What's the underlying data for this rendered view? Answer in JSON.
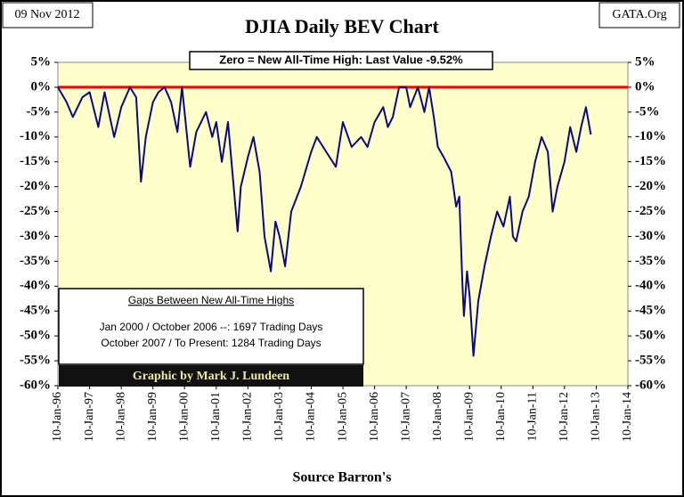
{
  "chart_data": {
    "type": "line",
    "title": "DJIA Daily BEV Chart",
    "date_label": "09 Nov 2012",
    "source_label": "GATA.Org",
    "xlabel": "Source Barron's",
    "annotations": {
      "top_box": "Zero = New All-Time High: Last Value  -9.52%",
      "gap_heading": "Gaps Between New All-Time Highs",
      "gap_lines": [
        "Jan 2000 / October 2006 --: 1697 Trading Days",
        "October 2007 / To Present:  1284 Trading Days"
      ],
      "credit": "Graphic by Mark J. Lundeen"
    },
    "background": "#ffffcc",
    "reference_line": {
      "value": 0,
      "color": "#ff0000"
    },
    "xlim": [
      "1996-01-10",
      "2014-01-10"
    ],
    "xticks": [
      {
        "value": "1996-01-10",
        "label": "10-Jan-96"
      },
      {
        "value": "1997-01-10",
        "label": "10-Jan-97"
      },
      {
        "value": "1998-01-10",
        "label": "10-Jan-98"
      },
      {
        "value": "1999-01-10",
        "label": "10-Jan-99"
      },
      {
        "value": "2000-01-10",
        "label": "10-Jan-00"
      },
      {
        "value": "2001-01-10",
        "label": "10-Jan-01"
      },
      {
        "value": "2002-01-10",
        "label": "10-Jan-02"
      },
      {
        "value": "2003-01-10",
        "label": "10-Jan-03"
      },
      {
        "value": "2004-01-10",
        "label": "10-Jan-04"
      },
      {
        "value": "2005-01-10",
        "label": "10-Jan-05"
      },
      {
        "value": "2006-01-10",
        "label": "10-Jan-06"
      },
      {
        "value": "2007-01-10",
        "label": "10-Jan-07"
      },
      {
        "value": "2008-01-10",
        "label": "10-Jan-08"
      },
      {
        "value": "2009-01-10",
        "label": "10-Jan-09"
      },
      {
        "value": "2010-01-10",
        "label": "10-Jan-10"
      },
      {
        "value": "2011-01-10",
        "label": "10-Jan-11"
      },
      {
        "value": "2012-01-10",
        "label": "10-Jan-12"
      },
      {
        "value": "2013-01-10",
        "label": "10-Jan-13"
      },
      {
        "value": "2014-01-10",
        "label": "10-Jan-14"
      }
    ],
    "ylim": [
      -60,
      5
    ],
    "yticks": [
      {
        "value": 5,
        "label": "5%"
      },
      {
        "value": 0,
        "label": "0%"
      },
      {
        "value": -5,
        "label": "-5%"
      },
      {
        "value": -10,
        "label": "-10%"
      },
      {
        "value": -15,
        "label": "-15%"
      },
      {
        "value": -20,
        "label": "-20%"
      },
      {
        "value": -25,
        "label": "-25%"
      },
      {
        "value": -30,
        "label": "-30%"
      },
      {
        "value": -35,
        "label": "-35%"
      },
      {
        "value": -40,
        "label": "-40%"
      },
      {
        "value": -45,
        "label": "-45%"
      },
      {
        "value": -50,
        "label": "-50%"
      },
      {
        "value": -55,
        "label": "-55%"
      },
      {
        "value": -60,
        "label": "-60%"
      }
    ],
    "x": [
      "1996-01-10",
      "1996-04-20",
      "1996-07-01",
      "1996-10-20",
      "1997-01-10",
      "1997-04-20",
      "1997-07-01",
      "1997-10-20",
      "1998-01-10",
      "1998-04-20",
      "1998-07-01",
      "1998-08-26",
      "1998-10-20",
      "1999-01-10",
      "1999-03-15",
      "1999-05-25",
      "1999-08-08",
      "1999-10-20",
      "1999-12-12",
      "2000-03-15",
      "2000-05-25",
      "2000-09-13",
      "2000-11-24",
      "2001-01-10",
      "2001-03-15",
      "2001-05-25",
      "2001-09-13",
      "2001-10-20",
      "2002-01-10",
      "2002-03-15",
      "2002-05-25",
      "2002-07-20",
      "2002-10-01",
      "2002-11-24",
      "2003-01-10",
      "2003-03-15",
      "2003-05-25",
      "2003-09-13",
      "2004-01-10",
      "2004-03-15",
      "2004-07-01",
      "2004-10-20",
      "2005-01-10",
      "2005-04-20",
      "2005-08-08",
      "2005-10-20",
      "2006-01-10",
      "2006-04-20",
      "2006-06-12",
      "2006-08-08",
      "2006-10-20",
      "2007-01-10",
      "2007-02-24",
      "2007-05-25",
      "2007-08-08",
      "2007-10-01",
      "2007-11-24",
      "2008-01-10",
      "2008-03-15",
      "2008-06-12",
      "2008-08-08",
      "2008-09-13",
      "2008-10-20",
      "2008-11-06",
      "2008-12-12",
      "2009-01-10",
      "2009-02-24",
      "2009-04-20",
      "2009-07-01",
      "2009-09-13",
      "2009-11-24",
      "2010-02-05",
      "2010-04-20",
      "2010-05-25",
      "2010-07-01",
      "2010-09-13",
      "2010-11-24",
      "2011-02-05",
      "2011-04-20",
      "2011-07-01",
      "2011-08-26",
      "2011-10-20",
      "2012-01-10",
      "2012-03-15",
      "2012-05-25",
      "2012-07-20",
      "2012-09-13",
      "2012-11-09"
    ],
    "series": [
      {
        "color": "#0a0a80",
        "values": [
          0,
          -3,
          -6,
          -2,
          -1,
          -8,
          -1,
          -10,
          -4,
          0,
          -2,
          -19,
          -10,
          -3,
          -1,
          0,
          -3,
          -9,
          0,
          -16,
          -9,
          -5,
          -10,
          -7,
          -15,
          -7,
          -29,
          -20,
          -14,
          -10,
          -17,
          -30,
          -37,
          -27,
          -30,
          -36,
          -25,
          -20,
          -13,
          -10,
          -13,
          -16,
          -7,
          -12,
          -10,
          -12,
          -7,
          -4,
          -8,
          -6,
          0,
          0,
          -4,
          0,
          -5,
          0,
          -6,
          -12,
          -14,
          -17,
          -24,
          -22,
          -40,
          -46,
          -37,
          -42,
          -54,
          -43,
          -36,
          -30,
          -25,
          -28,
          -22,
          -30,
          -31,
          -25,
          -22,
          -15,
          -10,
          -13,
          -25,
          -20,
          -15,
          -8,
          -13,
          -8,
          -4,
          -9.52
        ]
      }
    ]
  }
}
